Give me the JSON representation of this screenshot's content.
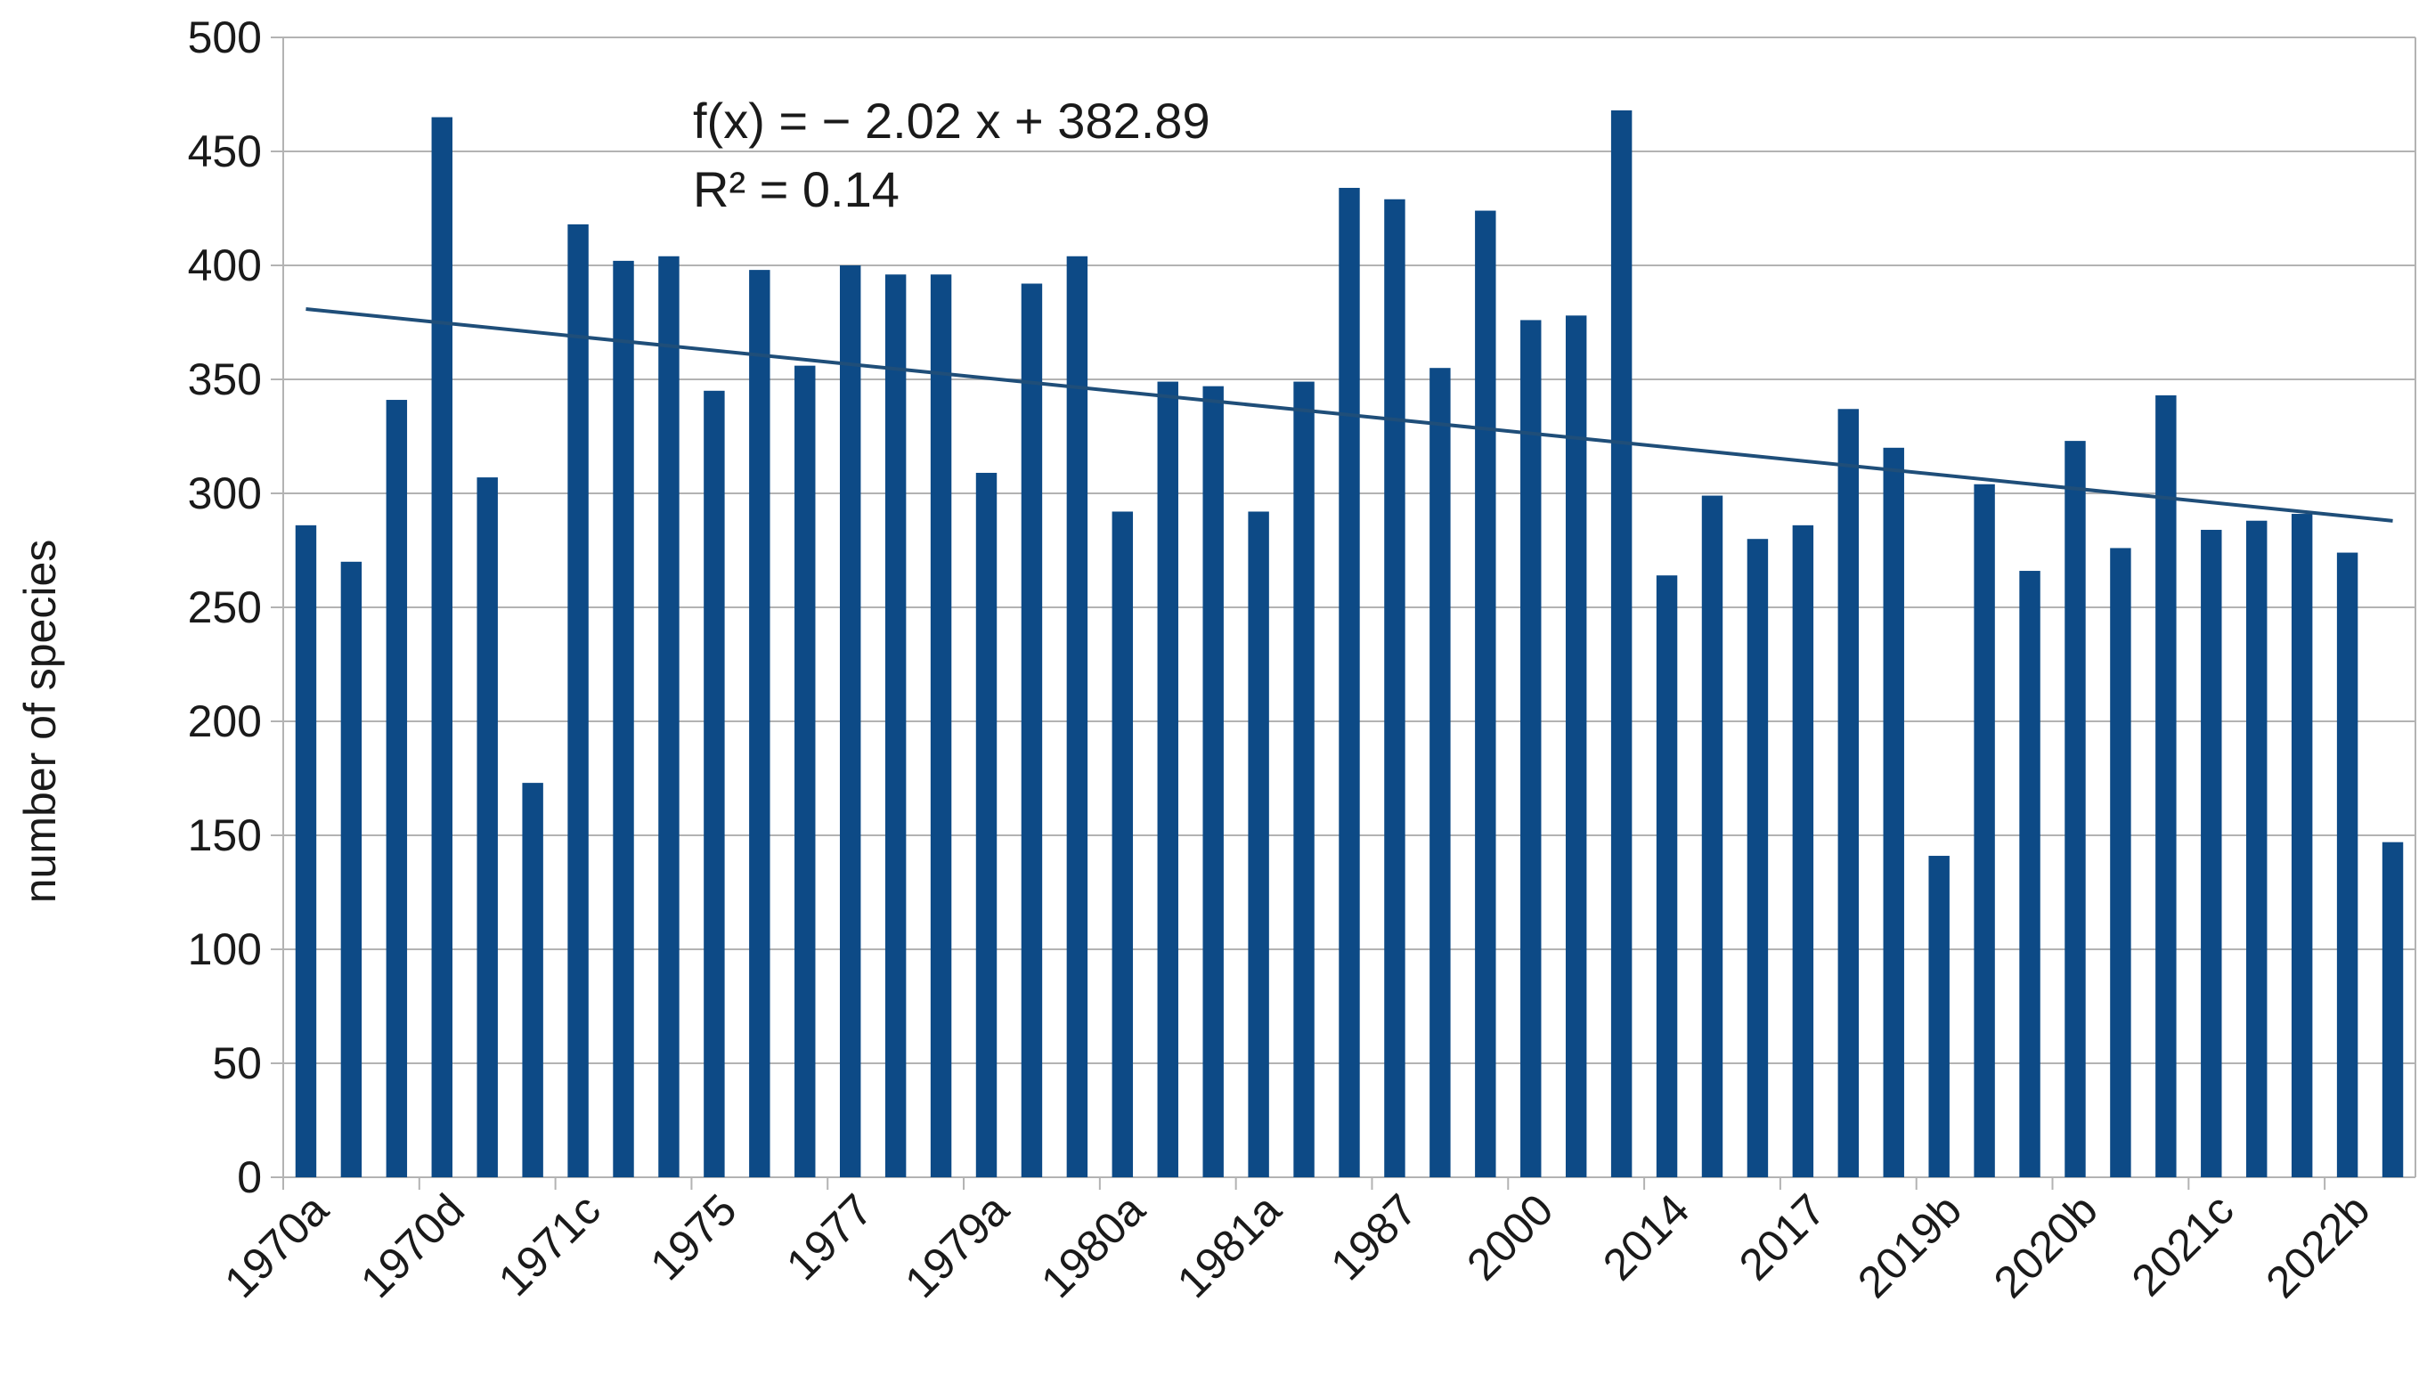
{
  "chart_data": {
    "type": "bar",
    "title": "",
    "xlabel": "",
    "ylabel": "number of species",
    "ylim": [
      0,
      500
    ],
    "yticks": [
      "0",
      "50",
      "100",
      "150",
      "200",
      "250",
      "300",
      "350",
      "400",
      "450",
      "500"
    ],
    "grid": true,
    "bar_color": "#0d4a86",
    "trend_color": "#1f4e79",
    "tick_labels": [
      "1970a",
      "1970d",
      "1971c",
      "1975",
      "1977",
      "1979a",
      "1980a",
      "1981a",
      "1987",
      "2000",
      "2014",
      "2017",
      "2019b",
      "2020b",
      "2021c",
      "2022b"
    ],
    "tick_label_positions": [
      0,
      3,
      6,
      9,
      12,
      15,
      18,
      21,
      24,
      27,
      30,
      33,
      36,
      39,
      42,
      45
    ],
    "values": [
      286,
      270,
      341,
      465,
      307,
      173,
      418,
      402,
      404,
      345,
      398,
      356,
      400,
      396,
      396,
      309,
      392,
      404,
      292,
      349,
      347,
      292,
      349,
      434,
      429,
      355,
      424,
      376,
      378,
      468,
      264,
      299,
      280,
      286,
      337,
      320,
      141,
      304,
      266,
      323,
      276,
      343,
      284,
      288,
      291,
      274,
      147
    ],
    "trendline": {
      "slope": -2.02,
      "intercept": 382.89
    },
    "equation_text": "f(x) = − 2.02 x + 382.89",
    "r2_text": "R² = 0.14"
  }
}
